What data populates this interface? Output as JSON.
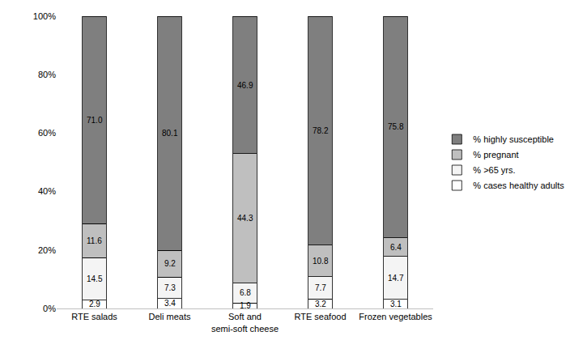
{
  "chart_data": {
    "type": "bar",
    "stacked": true,
    "data_labels": true,
    "grid": false,
    "legend": "right",
    "categories": [
      "RTE salads",
      "Deli meats",
      "Soft and semi-soft cheese",
      "RTE seafood",
      "Frozen vegetables"
    ],
    "series": [
      {
        "name": "% cases healthy adults",
        "color": "#ffffff",
        "values": [
          2.9,
          3.4,
          1.9,
          3.2,
          3.1
        ],
        "value_labels": [
          "2.9",
          "3.4",
          "1.9",
          "3.2",
          "3.1"
        ]
      },
      {
        "name": "% >65 yrs.",
        "color": "#f4f4f4",
        "values": [
          14.5,
          7.3,
          6.8,
          7.7,
          14.7
        ],
        "value_labels": [
          "14.5",
          "7.3",
          "6.8",
          "7.7",
          "14.7"
        ]
      },
      {
        "name": "% pregnant",
        "color": "#bfbfbf",
        "values": [
          11.6,
          9.2,
          44.3,
          10.8,
          6.4
        ],
        "value_labels": [
          "11.6",
          "9.2",
          "44.3",
          "10.8",
          "6.4"
        ]
      },
      {
        "name": "% highly susceptible",
        "color": "#7f7f7f",
        "values": [
          71.0,
          80.1,
          46.9,
          78.2,
          75.8
        ],
        "value_labels": [
          "71.0",
          "80.1",
          "46.9",
          "78.2",
          "75.8"
        ]
      }
    ],
    "ylim": [
      0,
      100
    ],
    "yticks": [
      {
        "value": 0,
        "label": "0%"
      },
      {
        "value": 20,
        "label": "20%"
      },
      {
        "value": 40,
        "label": "40%"
      },
      {
        "value": 60,
        "label": "60%"
      },
      {
        "value": 80,
        "label": "80%"
      },
      {
        "value": 100,
        "label": "100%"
      }
    ]
  }
}
